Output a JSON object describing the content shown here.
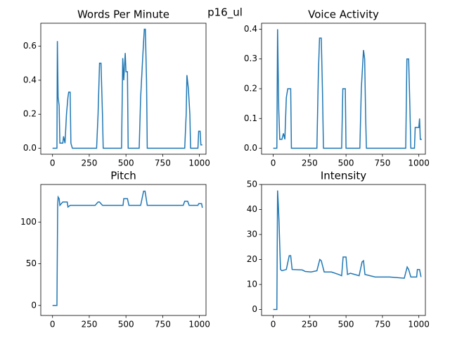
{
  "title": "p16_ul",
  "chart_data": [
    {
      "type": "line",
      "title": "Words Per Minute",
      "x": [
        0,
        30,
        33,
        38,
        45,
        50,
        70,
        75,
        85,
        95,
        105,
        110,
        120,
        125,
        135,
        300,
        310,
        320,
        330,
        340,
        345,
        470,
        478,
        485,
        495,
        500,
        510,
        515,
        590,
        600,
        615,
        625,
        632,
        640,
        645,
        900,
        910,
        915,
        925,
        935,
        940,
        990,
        995,
        1005,
        1010,
        1020
      ],
      "series": [
        {
          "color": "#1f77b4",
          "values": [
            0,
            0,
            0.63,
            0.3,
            0.25,
            0.03,
            0.03,
            0.07,
            0.03,
            0.2,
            0.3,
            0.33,
            0.33,
            0.03,
            0,
            0,
            0.2,
            0.5,
            0.5,
            0.2,
            0,
            0,
            0.53,
            0.4,
            0.56,
            0.45,
            0.45,
            0,
            0,
            0.3,
            0.55,
            0.7,
            0.7,
            0.4,
            0,
            0,
            0.2,
            0.43,
            0.35,
            0.2,
            0,
            0,
            0.1,
            0.1,
            0.02,
            0.02
          ]
        }
      ],
      "xlim": [
        -80,
        1045
      ],
      "xticks": [
        0,
        250,
        500,
        750,
        1000
      ],
      "ylim": [
        -0.035,
        0.735
      ],
      "yticks": [
        {
          "value": 0,
          "label": "0.0"
        },
        {
          "value": 0.2,
          "label": "0.2"
        },
        {
          "value": 0.4,
          "label": "0.4"
        },
        {
          "value": 0.6,
          "label": "0.6"
        }
      ]
    },
    {
      "type": "line",
      "title": "Voice Activity",
      "x": [
        0,
        25,
        30,
        38,
        45,
        60,
        70,
        80,
        90,
        100,
        120,
        125,
        300,
        310,
        318,
        330,
        338,
        345,
        470,
        478,
        495,
        500,
        595,
        605,
        620,
        628,
        635,
        640,
        910,
        918,
        930,
        938,
        945,
        970,
        975,
        1000,
        1005,
        1010,
        1020
      ],
      "series": [
        {
          "color": "#1f77b4",
          "values": [
            0,
            0,
            0.4,
            0.13,
            0.03,
            0.03,
            0.05,
            0.03,
            0.17,
            0.2,
            0.2,
            0,
            0,
            0.25,
            0.37,
            0.37,
            0.2,
            0,
            0,
            0.2,
            0.2,
            0,
            0,
            0.2,
            0.33,
            0.3,
            0.1,
            0,
            0,
            0.3,
            0.3,
            0.15,
            0,
            0,
            0.07,
            0.07,
            0.1,
            0.03,
            0.03
          ]
        }
      ],
      "xlim": [
        -80,
        1045
      ],
      "xticks": [
        0,
        250,
        500,
        750,
        1000
      ],
      "ylim": [
        -0.02,
        0.42
      ],
      "yticks": [
        {
          "value": 0,
          "label": "0.0"
        },
        {
          "value": 0.1,
          "label": "0.1"
        },
        {
          "value": 0.2,
          "label": "0.2"
        },
        {
          "value": 0.3,
          "label": "0.3"
        },
        {
          "value": 0.4,
          "label": "0.4"
        }
      ]
    },
    {
      "type": "line",
      "title": "Pitch",
      "x": [
        0,
        30,
        35,
        38,
        45,
        50,
        60,
        70,
        100,
        105,
        120,
        290,
        310,
        320,
        340,
        480,
        485,
        510,
        520,
        600,
        620,
        630,
        645,
        890,
        900,
        920,
        930,
        990,
        995,
        1015,
        1020
      ],
      "series": [
        {
          "color": "#1f77b4",
          "values": [
            0,
            0,
            120,
            130,
            128,
            120,
            122,
            124,
            124,
            118,
            120,
            120,
            124,
            124,
            120,
            120,
            128,
            128,
            120,
            120,
            137,
            137,
            120,
            120,
            125,
            125,
            120,
            120,
            122,
            122,
            117
          ]
        }
      ],
      "xlim": [
        -80,
        1045
      ],
      "xticks": [
        0,
        250,
        500,
        750,
        1000
      ],
      "ylim": [
        -12,
        145
      ],
      "yticks": [
        0,
        50,
        100
      ]
    },
    {
      "type": "line",
      "title": "Intensity",
      "x": [
        0,
        25,
        30,
        35,
        40,
        50,
        60,
        90,
        110,
        120,
        130,
        200,
        220,
        260,
        300,
        320,
        330,
        350,
        400,
        450,
        470,
        480,
        500,
        510,
        530,
        590,
        610,
        620,
        630,
        700,
        800,
        900,
        920,
        930,
        945,
        985,
        990,
        1005,
        1015
      ],
      "series": [
        {
          "color": "#1f77b4",
          "values": [
            0,
            0,
            47.6,
            42,
            35,
            16,
            15.5,
            16,
            21.5,
            21.5,
            16,
            15.8,
            15.2,
            15,
            15.5,
            20,
            19.5,
            15,
            15,
            14,
            13.5,
            21,
            21,
            14,
            14.5,
            13.5,
            19,
            19.5,
            14,
            13,
            13,
            12.5,
            17,
            16,
            13,
            13,
            16,
            16,
            13
          ]
        }
      ],
      "xlim": [
        -80,
        1045
      ],
      "xticks": [
        0,
        250,
        500,
        750,
        1000
      ],
      "ylim": [
        -2.4,
        50
      ],
      "yticks": [
        0,
        10,
        20,
        30,
        40,
        50
      ]
    }
  ]
}
